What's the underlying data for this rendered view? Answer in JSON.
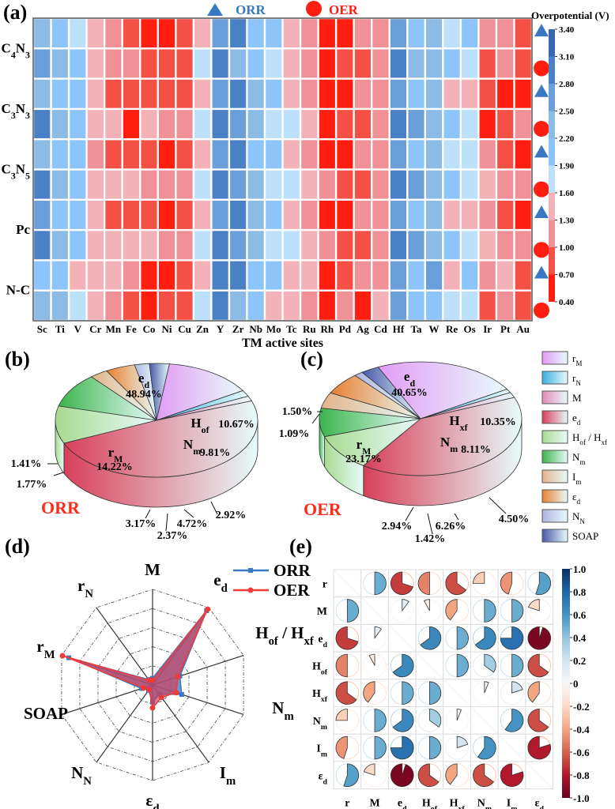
{
  "figure": {
    "panel_labels": {
      "a": "(a)",
      "b": "(b)",
      "c": "(c)",
      "d": "(d)",
      "e": "(e)"
    }
  },
  "chart_data": [
    {
      "id": "a",
      "type": "heatmap",
      "title": "",
      "xlabel": "TM active sites",
      "colorbar_title": "Overpotential (V)",
      "legend": [
        {
          "name": "ORR",
          "marker": "triangle",
          "color": "#3a78c4"
        },
        {
          "name": "OER",
          "marker": "circle",
          "color": "#ff1e10"
        }
      ],
      "x": [
        "Sc",
        "Ti",
        "V",
        "Cr",
        "Mn",
        "Fe",
        "Co",
        "Ni",
        "Cu",
        "Zn",
        "Y",
        "Zr",
        "Nb",
        "Mo",
        "Tc",
        "Ru",
        "Rh",
        "Pd",
        "Ag",
        "Cd",
        "Hf",
        "Ta",
        "W",
        "Re",
        "Os",
        "Ir",
        "Pt",
        "Au"
      ],
      "row_groups": [
        {
          "label_main": "C",
          "sub1": "4",
          "mid": "N",
          "sub2": "3"
        },
        {
          "label_main": "C",
          "sub1": "3",
          "mid": "N",
          "sub2": "3"
        },
        {
          "label_main": "C",
          "sub1": "3",
          "mid": "N",
          "sub2": "5"
        },
        {
          "label_main": "Pc",
          "sub1": "",
          "mid": "",
          "sub2": ""
        },
        {
          "label_main": "N-C",
          "sub1": "",
          "mid": "",
          "sub2": ""
        }
      ],
      "row_reactions": [
        "ORR",
        "OER",
        "ORR",
        "OER",
        "ORR",
        "OER",
        "ORR",
        "OER",
        "ORR",
        "OER"
      ],
      "colorbar_ticks": [
        "0.40",
        "0.70",
        "1.00",
        "1.30",
        "1.60",
        "1.90",
        "2.20",
        "2.50",
        "2.80",
        "3.10",
        "3.40"
      ],
      "vmin": 0.4,
      "vmax": 3.4,
      "bin_colors": [
        "#ff1e10",
        "#f55045",
        "#f09097",
        "#f2b2b7",
        "#bde0fb",
        "#8dc5fb",
        "#8cbbe6",
        "#6a9fd9",
        "#4a80c6",
        "#3a66b0"
      ],
      "values": [
        [
          2.35,
          2.05,
          1.75,
          1.45,
          1.15,
          0.85,
          0.55,
          0.55,
          0.85,
          1.45,
          2.65,
          2.95,
          2.05,
          2.05,
          1.45,
          1.15,
          0.55,
          0.55,
          1.15,
          1.15,
          2.65,
          2.05,
          2.35,
          1.75,
          2.05,
          1.15,
          1.15,
          0.85
        ],
        [
          2.65,
          2.35,
          2.05,
          1.45,
          1.15,
          1.15,
          0.85,
          0.85,
          0.85,
          1.75,
          2.95,
          2.35,
          2.05,
          1.75,
          1.45,
          1.15,
          0.55,
          0.85,
          0.85,
          1.15,
          2.95,
          2.35,
          2.35,
          2.05,
          1.75,
          0.85,
          1.15,
          0.85
        ],
        [
          2.35,
          2.05,
          2.05,
          1.45,
          0.85,
          0.85,
          0.85,
          0.85,
          0.85,
          1.45,
          2.65,
          2.95,
          2.35,
          2.05,
          1.45,
          1.15,
          0.55,
          0.55,
          1.15,
          1.15,
          2.65,
          2.05,
          2.35,
          1.45,
          1.45,
          0.85,
          0.55,
          0.55
        ],
        [
          2.95,
          2.35,
          2.05,
          1.45,
          1.45,
          0.55,
          1.45,
          1.15,
          1.15,
          1.75,
          2.95,
          2.65,
          2.35,
          1.75,
          1.75,
          1.45,
          0.55,
          0.85,
          0.85,
          1.15,
          2.95,
          2.65,
          2.35,
          2.05,
          1.75,
          0.55,
          0.85,
          1.15
        ],
        [
          2.35,
          2.05,
          2.05,
          1.15,
          0.85,
          0.85,
          0.85,
          0.55,
          0.85,
          1.45,
          2.65,
          2.95,
          2.05,
          2.05,
          1.45,
          1.15,
          0.55,
          0.55,
          1.15,
          1.15,
          2.65,
          2.05,
          2.35,
          1.75,
          1.75,
          1.15,
          0.85,
          0.55
        ],
        [
          2.95,
          2.35,
          2.05,
          1.45,
          1.45,
          1.45,
          1.15,
          1.15,
          1.15,
          1.75,
          2.95,
          2.65,
          2.35,
          1.75,
          1.75,
          1.45,
          1.15,
          0.85,
          0.85,
          1.15,
          2.95,
          2.65,
          2.35,
          2.05,
          1.75,
          1.45,
          1.15,
          1.15
        ],
        [
          2.65,
          2.05,
          2.05,
          1.45,
          0.85,
          0.85,
          0.85,
          0.55,
          0.85,
          1.45,
          2.65,
          2.95,
          2.35,
          2.05,
          1.45,
          1.15,
          0.55,
          0.55,
          1.15,
          1.15,
          2.65,
          2.05,
          2.35,
          1.45,
          1.45,
          1.15,
          0.85,
          0.55
        ],
        [
          2.95,
          2.35,
          2.05,
          1.45,
          1.45,
          1.45,
          1.45,
          1.15,
          1.15,
          1.75,
          2.95,
          2.65,
          2.35,
          1.75,
          1.75,
          1.45,
          1.15,
          0.85,
          0.85,
          1.15,
          2.95,
          2.65,
          2.35,
          2.05,
          1.75,
          1.45,
          1.15,
          1.15
        ],
        [
          2.05,
          2.05,
          1.45,
          1.45,
          1.45,
          1.15,
          0.55,
          0.55,
          0.85,
          1.45,
          2.95,
          2.95,
          2.05,
          2.05,
          1.45,
          1.45,
          0.55,
          0.85,
          1.15,
          1.15,
          2.65,
          2.05,
          2.65,
          1.45,
          2.05,
          1.15,
          1.45,
          0.85
        ],
        [
          2.35,
          2.35,
          1.75,
          1.45,
          1.15,
          0.85,
          0.55,
          0.85,
          0.85,
          1.75,
          2.95,
          2.35,
          2.05,
          1.45,
          1.45,
          1.15,
          0.55,
          1.15,
          0.55,
          1.45,
          2.65,
          2.05,
          2.05,
          1.75,
          1.75,
          0.85,
          1.15,
          0.85
        ]
      ]
    },
    {
      "id": "b",
      "type": "pie",
      "title": "ORR",
      "title_color": "#ff2a1a",
      "slices": [
        {
          "key": "e_d",
          "label": "e",
          "sub": "d",
          "value": 48.94,
          "text": "48.94%"
        },
        {
          "key": "H",
          "label": "H",
          "sub": "of",
          "value": 10.67,
          "text": "10.67%"
        },
        {
          "key": "N_m",
          "label": "N",
          "sub": "m",
          "value": 9.81,
          "text": "9.81%"
        },
        {
          "key": "I_m",
          "label": "I",
          "sub": "m",
          "value": 2.92,
          "text": "2.92%"
        },
        {
          "key": "eps_d",
          "label": "ε",
          "sub": "d",
          "value": 4.72,
          "text": "4.72%"
        },
        {
          "key": "N_N",
          "label": "N",
          "sub": "N",
          "value": 2.37,
          "text": "2.37%"
        },
        {
          "key": "SOAP",
          "label": "SOAP",
          "sub": "",
          "value": 3.17,
          "text": "3.17%"
        },
        {
          "key": "r_M",
          "label": "r",
          "sub": "M",
          "value": 14.22,
          "text": "14.22%"
        },
        {
          "key": "r_N",
          "label": "r",
          "sub": "N",
          "value": 1.77,
          "text": "1.77%"
        },
        {
          "key": "M",
          "label": "M",
          "sub": "",
          "value": 1.41,
          "text": "1.41%"
        }
      ]
    },
    {
      "id": "c",
      "type": "pie",
      "title": "OER",
      "title_color": "#ff2a1a",
      "slices": [
        {
          "key": "e_d",
          "label": "e",
          "sub": "d",
          "value": 40.65,
          "text": "40.65%"
        },
        {
          "key": "H",
          "label": "H",
          "sub": "xf",
          "value": 10.35,
          "text": "10.35%"
        },
        {
          "key": "N_m",
          "label": "N",
          "sub": "m",
          "value": 8.11,
          "text": "8.11%"
        },
        {
          "key": "I_m",
          "label": "I",
          "sub": "m",
          "value": 4.5,
          "text": "4.50%"
        },
        {
          "key": "eps_d",
          "label": "ε",
          "sub": "d",
          "value": 6.26,
          "text": "6.26%"
        },
        {
          "key": "N_N",
          "label": "N",
          "sub": "N",
          "value": 1.42,
          "text": "1.42%"
        },
        {
          "key": "SOAP",
          "label": "SOAP",
          "sub": "",
          "value": 2.94,
          "text": "2.94%"
        },
        {
          "key": "r_M",
          "label": "r",
          "sub": "M",
          "value": 23.17,
          "text": "23.17%"
        },
        {
          "key": "r_N",
          "label": "r",
          "sub": "N",
          "value": 1.09,
          "text": "1.09%"
        },
        {
          "key": "M",
          "label": "M",
          "sub": "",
          "value": 1.5,
          "text": "1.50%"
        }
      ]
    },
    {
      "id": "pie-legend",
      "type": "legend",
      "entries": [
        {
          "key": "r_M",
          "label": "r",
          "sub": "M",
          "color": "#e29cf5"
        },
        {
          "key": "r_N",
          "label": "r",
          "sub": "N",
          "color": "#3aaee0"
        },
        {
          "key": "M",
          "label": "M",
          "sub": "",
          "color": "#e28cb8"
        },
        {
          "key": "e_d",
          "label": "e",
          "sub": "d",
          "color": "#d8405a"
        },
        {
          "key": "H",
          "label": "H",
          "sub": "of",
          "label2": " / H",
          "sub2": "xf",
          "color": "#a8da90"
        },
        {
          "key": "N_m",
          "label": "N",
          "sub": "m",
          "color": "#3cb44c"
        },
        {
          "key": "I_m",
          "label": "I",
          "sub": "m",
          "color": "#e2b48a"
        },
        {
          "key": "eps_d",
          "label": "ε",
          "sub": "d",
          "color": "#e88030"
        },
        {
          "key": "N_N",
          "label": "N",
          "sub": "N",
          "color": "#b0b4e0"
        },
        {
          "key": "SOAP",
          "label": "SOAP",
          "sub": "",
          "color": "#4858a8"
        }
      ]
    },
    {
      "id": "d",
      "type": "radar",
      "axes": [
        {
          "label": "M",
          "sub": ""
        },
        {
          "label": "e",
          "sub": "d"
        },
        {
          "label": "H",
          "sub": "of",
          "label2": " / H",
          "sub2": "xf"
        },
        {
          "label": "N",
          "sub": "m"
        },
        {
          "label": "I",
          "sub": "m"
        },
        {
          "label": "ε",
          "sub": "d"
        },
        {
          "label": "N",
          "sub": "N"
        },
        {
          "label": "SOAP",
          "sub": ""
        },
        {
          "label": "r",
          "sub": "M"
        },
        {
          "label": "r",
          "sub": "N"
        }
      ],
      "rings": 5,
      "rmax": 5,
      "series": [
        {
          "name": "ORR",
          "color": "#3a78c4",
          "fill": "#3a78c4",
          "values": [
            0.35,
            4.8,
            1.5,
            1.6,
            0.6,
            0.9,
            0.35,
            0.6,
            4.6,
            0.35
          ]
        },
        {
          "name": "OER",
          "color": "#f03a3a",
          "fill": "#d0405a",
          "values": [
            0.25,
            4.9,
            1.4,
            1.3,
            0.8,
            1.2,
            0.3,
            0.5,
            4.95,
            0.3
          ]
        }
      ]
    },
    {
      "id": "e",
      "type": "heatmap",
      "subtype": "correlation-pie-matrix",
      "labels": [
        {
          "label": "r",
          "sub": ""
        },
        {
          "label": "M",
          "sub": ""
        },
        {
          "label": "e",
          "sub": "d"
        },
        {
          "label": "H",
          "sub": "of"
        },
        {
          "label": "H",
          "sub": "xf"
        },
        {
          "label": "N",
          "sub": "m"
        },
        {
          "label": "I",
          "sub": "m"
        },
        {
          "label": "ε",
          "sub": "d"
        }
      ],
      "colorbar_ticks": [
        "1.0",
        "0.8",
        "0.6",
        "0.4",
        "0.2",
        "0",
        "-0.2",
        "-0.4",
        "-0.6",
        "-0.8",
        "-1.0"
      ],
      "vmin": -1.0,
      "vmax": 1.0,
      "values": [
        [
          null,
          0.5,
          -0.7,
          -0.5,
          -0.65,
          -0.25,
          -0.45,
          0.55
        ],
        [
          0.5,
          null,
          0.1,
          -0.08,
          -0.4,
          0.5,
          0.5,
          -0.2
        ],
        [
          -0.7,
          0.1,
          null,
          0.65,
          0.5,
          0.65,
          0.75,
          -0.95
        ],
        [
          -0.5,
          -0.08,
          0.65,
          null,
          0.5,
          0.35,
          0.5,
          -0.65
        ],
        [
          -0.65,
          -0.4,
          0.5,
          0.5,
          null,
          0.06,
          0.2,
          -0.4
        ],
        [
          -0.25,
          0.5,
          0.65,
          0.35,
          0.06,
          null,
          0.6,
          -0.65
        ],
        [
          -0.45,
          0.5,
          0.75,
          0.5,
          0.2,
          0.6,
          null,
          -0.8
        ],
        [
          0.55,
          -0.2,
          -0.95,
          -0.65,
          -0.4,
          -0.65,
          -0.8,
          null
        ]
      ]
    }
  ]
}
